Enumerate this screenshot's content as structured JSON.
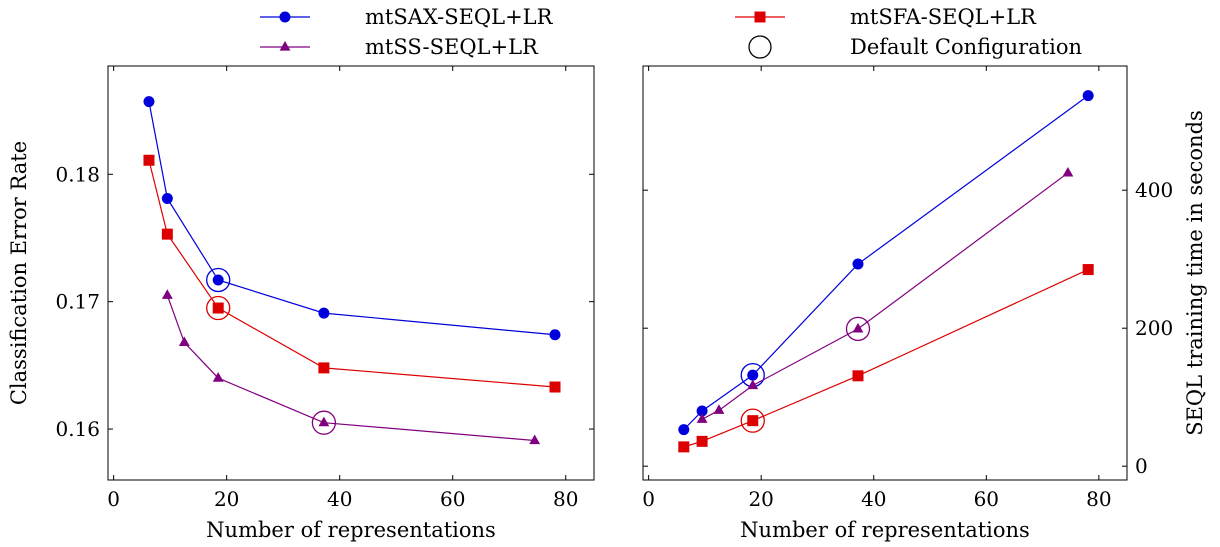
{
  "colors": {
    "sax": "#0000dd",
    "sfa": "#dd0000",
    "ss": "#800080",
    "default": "#000000"
  },
  "legend": {
    "entries": [
      {
        "label": "mtSAX-SEQL+LR",
        "color": "#0000dd",
        "marker": "circle"
      },
      {
        "label": "mtSFA-SEQL+LR",
        "color": "#dd0000",
        "marker": "square"
      },
      {
        "label": "mtSS-SEQL+LR",
        "color": "#800080",
        "marker": "triangle"
      },
      {
        "label": "Default Configuration",
        "color": "#000000",
        "marker": "open-circle"
      }
    ]
  },
  "chart_data": [
    {
      "type": "line",
      "xlabel": "Number of representations",
      "ylabel": "Classification Error Rate",
      "xlim": [
        -1,
        85
      ],
      "ylim": [
        0.156,
        0.1885
      ],
      "xticks": [
        0,
        20,
        40,
        60,
        80
      ],
      "yticks": [
        0.16,
        0.17,
        0.18
      ],
      "ytick_labels": [
        "0.16",
        "0.17",
        "0.18"
      ],
      "y_axis_side": "left",
      "series": [
        {
          "name": "mtSAX-SEQL+LR",
          "color": "#0000dd",
          "marker": "circle",
          "x": [
            6.25,
            9.5,
            18.5,
            37.2,
            78.1
          ],
          "y": [
            0.1857,
            0.1781,
            0.1717,
            0.1691,
            0.1674
          ],
          "default_index": 2
        },
        {
          "name": "mtSFA-SEQL+LR",
          "color": "#dd0000",
          "marker": "square",
          "x": [
            6.25,
            9.5,
            18.5,
            37.2,
            78.1
          ],
          "y": [
            0.1811,
            0.1753,
            0.1695,
            0.1648,
            0.1633
          ],
          "default_index": 2
        },
        {
          "name": "mtSS-SEQL+LR",
          "color": "#800080",
          "marker": "triangle",
          "x": [
            9.5,
            12.5,
            18.5,
            37.2,
            74.5
          ],
          "y": [
            0.1705,
            0.1668,
            0.164,
            0.1605,
            0.1591
          ],
          "default_index": 3
        }
      ]
    },
    {
      "type": "line",
      "xlabel": "Number of representations",
      "ylabel": "SEQL training time in seconds",
      "xlim": [
        -1,
        85
      ],
      "ylim": [
        -20,
        580
      ],
      "xticks": [
        0,
        20,
        40,
        60,
        80
      ],
      "yticks": [
        0,
        200,
        400
      ],
      "ytick_labels": [
        "0",
        "200",
        "400"
      ],
      "y_axis_side": "right",
      "series": [
        {
          "name": "mtSAX-SEQL+LR",
          "color": "#0000dd",
          "marker": "circle",
          "x": [
            6.25,
            9.5,
            18.5,
            37.2,
            78.1
          ],
          "y": [
            53,
            80,
            132,
            293,
            537
          ],
          "default_index": 2
        },
        {
          "name": "mtSFA-SEQL+LR",
          "color": "#dd0000",
          "marker": "square",
          "x": [
            6.25,
            9.5,
            18.5,
            37.2,
            78.1
          ],
          "y": [
            28,
            36,
            66,
            131,
            285
          ],
          "default_index": 2
        },
        {
          "name": "mtSS-SEQL+LR",
          "color": "#800080",
          "marker": "triangle",
          "x": [
            9.5,
            12.5,
            18.5,
            37.2,
            74.5
          ],
          "y": [
            68,
            81,
            117,
            199,
            425
          ],
          "default_index": 3
        }
      ]
    }
  ]
}
